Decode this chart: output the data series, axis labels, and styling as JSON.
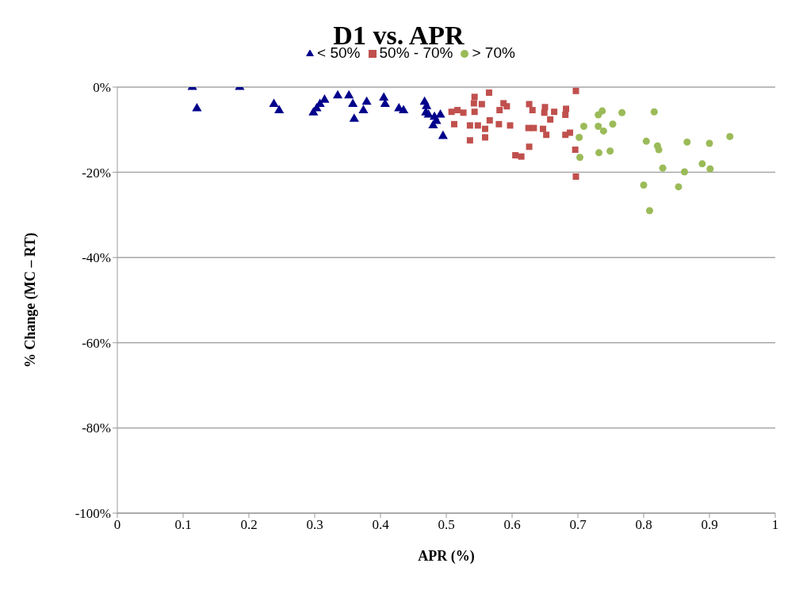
{
  "chart_data": {
    "type": "scatter",
    "title": "D1 vs. APR",
    "xlabel": "APR (%)",
    "ylabel": "% Change (MC – RT)",
    "legend": "top",
    "grid": "y",
    "xlim": [
      0,
      1
    ],
    "xticks": [
      0,
      0.1,
      0.2,
      0.3,
      0.4,
      0.5,
      0.6,
      0.7,
      0.8,
      0.9,
      1
    ],
    "ylim": [
      -100,
      0
    ],
    "yticks": [
      {
        "value": -100,
        "label": "-100%"
      },
      {
        "value": -80,
        "label": "-80%"
      },
      {
        "value": -60,
        "label": "-60%"
      },
      {
        "value": -40,
        "label": "-40%"
      },
      {
        "value": -20,
        "label": "-20%"
      },
      {
        "value": 0,
        "label": "0%"
      }
    ],
    "series": [
      {
        "name": "< 50%",
        "color": "#00008b",
        "marker": "triangle",
        "x": [
          0.114,
          0.121,
          0.186,
          0.238,
          0.246,
          0.298,
          0.303,
          0.308,
          0.315,
          0.335,
          0.352,
          0.358,
          0.36,
          0.374,
          0.379,
          0.405,
          0.407,
          0.428,
          0.435,
          0.467,
          0.469,
          0.47,
          0.473,
          0.48,
          0.482,
          0.485,
          0.491,
          0.495
        ],
        "values": [
          0,
          -5,
          0,
          -4,
          -5.5,
          -6,
          -5,
          -4,
          -3,
          -2,
          -2,
          -4,
          -7.5,
          -5.5,
          -3.5,
          -2.5,
          -4,
          -5,
          -5.5,
          -3.5,
          -6,
          -4.5,
          -6.5,
          -9,
          -7,
          -8,
          -6.5,
          -11.5
        ]
      },
      {
        "name": "50% - 70%",
        "color": "#c0504d",
        "marker": "square",
        "x": [
          0.508,
          0.517,
          0.526,
          0.512,
          0.536,
          0.536,
          0.548,
          0.543,
          0.542,
          0.543,
          0.554,
          0.565,
          0.559,
          0.559,
          0.566,
          0.58,
          0.581,
          0.587,
          0.592,
          0.597,
          0.605,
          0.614,
          0.626,
          0.626,
          0.631,
          0.625,
          0.633,
          0.647,
          0.652,
          0.65,
          0.649,
          0.658,
          0.664,
          0.682,
          0.681,
          0.681,
          0.688,
          0.697,
          0.696,
          0.697
        ],
        "values": [
          -5.8,
          -5.4,
          -6,
          -8.7,
          -9,
          -12.5,
          -9,
          -2.3,
          -3.8,
          -5.8,
          -4,
          -1.3,
          -9.8,
          -11.8,
          -7.8,
          -8.7,
          -5.4,
          -3.8,
          -4.5,
          -9,
          -16,
          -16.3,
          -14,
          -4,
          -5.4,
          -9.6,
          -9.6,
          -9.8,
          -11.2,
          -4.7,
          -6,
          -7.6,
          -5.8,
          -5.1,
          -6.5,
          -11.2,
          -10.7,
          -0.9,
          -14.7,
          -21
        ]
      },
      {
        "name": "> 70%",
        "color": "#9bbb59",
        "marker": "circle",
        "x": [
          0.702,
          0.709,
          0.703,
          0.731,
          0.737,
          0.731,
          0.739,
          0.732,
          0.749,
          0.753,
          0.767,
          0.816,
          0.804,
          0.821,
          0.823,
          0.829,
          0.8,
          0.809,
          0.853,
          0.862,
          0.866,
          0.889,
          0.901,
          0.9,
          0.931
        ],
        "values": [
          -11.8,
          -9.2,
          -16.5,
          -6.5,
          -5.6,
          -9.2,
          -10.3,
          -15.4,
          -15,
          -8.7,
          -6,
          -5.8,
          -12.7,
          -13.8,
          -14.7,
          -19,
          -23,
          -29,
          -23.4,
          -19.9,
          -12.9,
          -18,
          -19.2,
          -13.2,
          -11.6
        ]
      }
    ]
  }
}
